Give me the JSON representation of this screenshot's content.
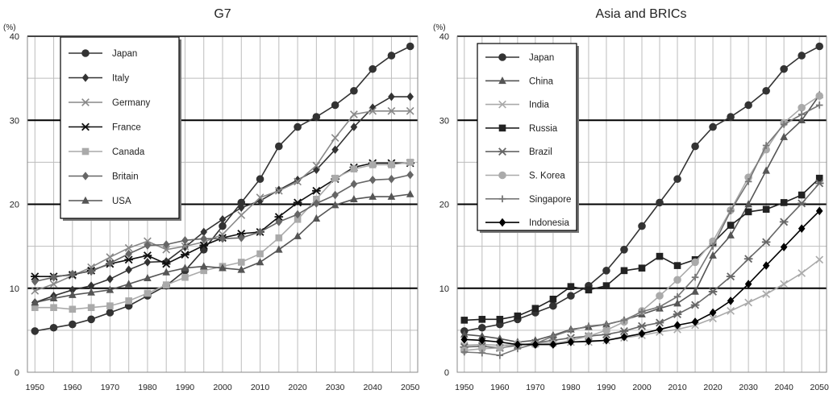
{
  "chart_data": [
    {
      "type": "line",
      "title": "G7",
      "ylabel": "(%)",
      "xlabel": "",
      "xlim": [
        1948,
        2052
      ],
      "ylim": [
        0,
        40
      ],
      "x_ticks": [
        "1950",
        "1960",
        "1970",
        "1980",
        "1990",
        "2000",
        "2010",
        "2020",
        "2030",
        "2040",
        "2050"
      ],
      "y_ticks": [
        "0",
        "10",
        "20",
        "30",
        "40"
      ],
      "grid": "on",
      "legend_position": "top-left",
      "x": [
        1950,
        1955,
        1960,
        1965,
        1970,
        1975,
        1980,
        1985,
        1990,
        1995,
        2000,
        2005,
        2010,
        2015,
        2020,
        2025,
        2030,
        2035,
        2040,
        2045,
        2050
      ],
      "series": [
        {
          "name": "Japan",
          "marker": "circle",
          "color": "#333333",
          "values": [
            4.9,
            5.3,
            5.7,
            6.3,
            7.1,
            7.9,
            9.1,
            10.3,
            12.1,
            14.6,
            17.4,
            20.2,
            23.0,
            26.9,
            29.2,
            30.4,
            31.8,
            33.5,
            36.1,
            37.7,
            38.8
          ]
        },
        {
          "name": "Italy",
          "marker": "diamond",
          "color": "#333333",
          "values": [
            8.3,
            9.1,
            9.8,
            10.3,
            11.1,
            12.2,
            13.1,
            13.2,
            14.9,
            16.7,
            18.2,
            19.6,
            20.4,
            21.7,
            22.9,
            24.1,
            26.5,
            29.2,
            31.5,
            32.8,
            32.8
          ]
        },
        {
          "name": "Germany",
          "marker": "x",
          "color": "#888888",
          "values": [
            9.7,
            10.5,
            11.5,
            12.5,
            13.7,
            14.8,
            15.6,
            14.6,
            15.0,
            15.5,
            16.4,
            18.7,
            20.8,
            21.6,
            22.7,
            24.6,
            27.9,
            30.7,
            31.1,
            31.1,
            31.1
          ]
        },
        {
          "name": "France",
          "marker": "asterisk",
          "color": "#111111",
          "values": [
            11.4,
            11.4,
            11.6,
            12.1,
            12.9,
            13.4,
            13.9,
            12.9,
            14.0,
            15.1,
            16.0,
            16.5,
            16.7,
            18.5,
            20.2,
            21.6,
            23.0,
            24.4,
            24.9,
            24.9,
            24.9
          ]
        },
        {
          "name": "Canada",
          "marker": "square",
          "color": "#aaaaaa",
          "values": [
            7.7,
            7.7,
            7.5,
            7.7,
            7.9,
            8.5,
            9.4,
            10.4,
            11.3,
            12.1,
            12.6,
            13.1,
            14.1,
            16.0,
            18.2,
            20.6,
            23.1,
            24.2,
            24.7,
            24.7,
            25.0
          ]
        },
        {
          "name": "Britain",
          "marker": "diamond",
          "color": "#666666",
          "values": [
            10.8,
            11.3,
            11.7,
            12.0,
            13.0,
            14.1,
            15.1,
            15.2,
            15.7,
            15.9,
            15.9,
            16.0,
            16.7,
            17.9,
            18.8,
            20.1,
            21.1,
            22.4,
            22.9,
            23.0,
            23.5
          ]
        },
        {
          "name": "USA",
          "marker": "triangle",
          "color": "#555555",
          "values": [
            8.3,
            8.8,
            9.2,
            9.5,
            9.8,
            10.5,
            11.2,
            11.9,
            12.4,
            12.6,
            12.4,
            12.2,
            13.1,
            14.6,
            16.2,
            18.3,
            19.9,
            20.6,
            20.9,
            20.9,
            21.2
          ]
        }
      ]
    },
    {
      "type": "line",
      "title": "Asia and BRICs",
      "ylabel": "(%)",
      "xlabel": "",
      "xlim": [
        1948,
        2052
      ],
      "ylim": [
        0,
        40
      ],
      "x_ticks": [
        "1950",
        "1960",
        "1970",
        "1980",
        "1990",
        "2000",
        "2010",
        "2020",
        "2030",
        "2040",
        "2050"
      ],
      "y_ticks": [
        "0",
        "10",
        "20",
        "30",
        "40"
      ],
      "grid": "on",
      "legend_position": "top-left",
      "x": [
        1950,
        1955,
        1960,
        1965,
        1970,
        1975,
        1980,
        1985,
        1990,
        1995,
        2000,
        2005,
        2010,
        2015,
        2020,
        2025,
        2030,
        2035,
        2040,
        2045,
        2050
      ],
      "series": [
        {
          "name": "Japan",
          "marker": "circle",
          "color": "#333333",
          "values": [
            4.9,
            5.3,
            5.7,
            6.3,
            7.1,
            7.9,
            9.1,
            10.3,
            12.1,
            14.6,
            17.4,
            20.2,
            23.0,
            26.9,
            29.2,
            30.4,
            31.8,
            33.5,
            36.1,
            37.7,
            38.8
          ]
        },
        {
          "name": "China",
          "marker": "triangle",
          "color": "#555555",
          "values": [
            4.5,
            4.3,
            4.0,
            3.6,
            3.8,
            4.4,
            5.1,
            5.4,
            5.7,
            6.2,
            6.9,
            7.6,
            8.2,
            9.6,
            13.9,
            16.3,
            20.0,
            24.0,
            28.0,
            30.0,
            33.0
          ]
        },
        {
          "name": "India",
          "marker": "x",
          "color": "#aaaaaa",
          "values": [
            3.2,
            3.3,
            3.2,
            3.3,
            3.4,
            3.5,
            3.6,
            3.6,
            3.8,
            4.1,
            4.4,
            4.8,
            5.1,
            5.6,
            6.4,
            7.3,
            8.3,
            9.3,
            10.5,
            11.8,
            13.4
          ]
        },
        {
          "name": "Russia",
          "marker": "square",
          "color": "#222222",
          "values": [
            6.2,
            6.3,
            6.3,
            6.7,
            7.6,
            8.7,
            10.2,
            9.8,
            10.3,
            12.1,
            12.4,
            13.8,
            12.7,
            13.4,
            15.4,
            17.5,
            19.1,
            19.4,
            20.2,
            21.1,
            23.1
          ]
        },
        {
          "name": "Brazil",
          "marker": "asterisk",
          "color": "#666666",
          "values": [
            3.0,
            3.1,
            2.9,
            3.2,
            3.5,
            3.8,
            4.1,
            4.3,
            4.5,
            4.9,
            5.5,
            5.9,
            6.9,
            8.0,
            9.6,
            11.4,
            13.5,
            15.5,
            17.9,
            20.1,
            22.5
          ]
        },
        {
          "name": "S. Korea",
          "marker": "circle",
          "color": "#aaaaaa",
          "values": [
            2.6,
            2.8,
            2.9,
            3.4,
            3.3,
            3.4,
            3.8,
            4.3,
            5.0,
            6.0,
            7.3,
            9.1,
            11.0,
            13.1,
            15.6,
            19.3,
            23.2,
            26.5,
            29.7,
            31.5,
            32.9
          ]
        },
        {
          "name": "Singapore",
          "marker": "plus",
          "color": "#777777",
          "values": [
            2.4,
            2.3,
            2.0,
            2.8,
            3.4,
            4.3,
            5.0,
            5.5,
            5.7,
            6.2,
            7.2,
            7.8,
            9.0,
            11.3,
            15.0,
            19.2,
            22.7,
            27.0,
            29.5,
            30.7,
            31.8
          ]
        },
        {
          "name": "Indonesia",
          "marker": "diamond",
          "color": "#000000",
          "values": [
            3.9,
            3.8,
            3.6,
            3.3,
            3.3,
            3.3,
            3.6,
            3.7,
            3.8,
            4.2,
            4.6,
            5.1,
            5.6,
            6.0,
            7.1,
            8.5,
            10.5,
            12.7,
            14.9,
            17.1,
            19.2
          ]
        }
      ]
    }
  ]
}
